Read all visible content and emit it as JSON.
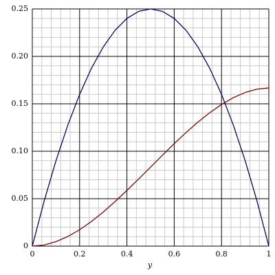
{
  "chart_data": {
    "type": "line",
    "xlabel": "y",
    "x": [
      0,
      0.05,
      0.1,
      0.15,
      0.2,
      0.25,
      0.3,
      0.35,
      0.4,
      0.45,
      0.5,
      0.55,
      0.6,
      0.65,
      0.7,
      0.75,
      0.8,
      0.85,
      0.9,
      0.95,
      1
    ],
    "series": [
      {
        "color": "#000080",
        "values": [
          0,
          0.0475,
          0.09,
          0.1275,
          0.16,
          0.1875,
          0.21,
          0.2275,
          0.24,
          0.2475,
          0.25,
          0.2475,
          0.24,
          0.2275,
          0.21,
          0.1875,
          0.16,
          0.1275,
          0.09,
          0.0475,
          0
        ]
      },
      {
        "color": "#800000",
        "values": [
          0,
          0.0012,
          0.0047,
          0.0101,
          0.0173,
          0.026,
          0.036,
          0.047,
          0.0587,
          0.0709,
          0.0833,
          0.0958,
          0.108,
          0.1197,
          0.1307,
          0.1406,
          0.1493,
          0.1565,
          0.162,
          0.1655,
          0.1667
        ]
      }
    ],
    "xlim": [
      0,
      1
    ],
    "ylim": [
      0,
      0.25
    ],
    "xticks": [
      0,
      0.2,
      0.4,
      0.6,
      0.8,
      1
    ],
    "yticks": [
      0,
      0.05,
      {
        "value": 0.1,
        "label": "0.10"
      },
      0.15,
      {
        "value": 0.2,
        "label": "0.20"
      },
      0.25
    ],
    "grid": true
  }
}
